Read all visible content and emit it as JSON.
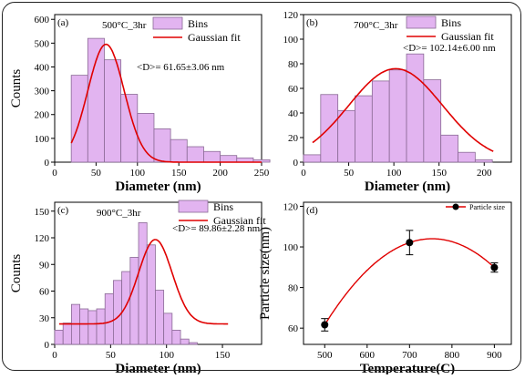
{
  "chart_data": [
    {
      "type": "bar",
      "panel_label": "(a)",
      "title": "500°C_3hr",
      "xlabel": "Diameter (nm)",
      "ylabel": "Counts",
      "xlim": [
        0,
        250
      ],
      "ylim": [
        0,
        620
      ],
      "xticks": [
        0,
        50,
        100,
        150,
        200,
        250
      ],
      "yticks": [
        0,
        100,
        200,
        300,
        400,
        500,
        600
      ],
      "bins": {
        "start": 20,
        "width": 20,
        "counts": [
          365,
          520,
          430,
          285,
          205,
          140,
          95,
          65,
          45,
          28,
          18,
          10
        ]
      },
      "fit": {
        "type": "gaussian",
        "mean": 62,
        "sigma": 22,
        "amplitude": 495,
        "x_range": [
          20,
          250
        ]
      },
      "legend": [
        "Bins",
        "Gaussian fit"
      ],
      "annotation": "<D>= 61.65±3.06 nm",
      "bar_color": "#e2b4f0",
      "fit_color": "#e00000"
    },
    {
      "type": "bar",
      "panel_label": "(b)",
      "title": "700°C_3hr",
      "xlabel": "Diameter (nm)",
      "ylabel": "",
      "xlim": [
        0,
        230
      ],
      "ylim": [
        0,
        120
      ],
      "xticks": [
        0,
        50,
        100,
        150,
        200
      ],
      "yticks": [
        0,
        20,
        40,
        60,
        80,
        100,
        120
      ],
      "bins": {
        "start": 0,
        "width": 19,
        "counts": [
          6,
          55,
          42,
          54,
          66,
          75,
          88,
          67,
          22,
          8,
          2
        ]
      },
      "fit": {
        "type": "gaussian",
        "mean": 102,
        "sigma": 52,
        "amplitude": 76,
        "x_range": [
          10,
          210
        ]
      },
      "legend": [
        "Bins",
        "Gaussian fit"
      ],
      "annotation": "<D>= 102.14±6.00 nm",
      "bar_color": "#e2b4f0",
      "fit_color": "#e00000"
    },
    {
      "type": "bar",
      "panel_label": "(c)",
      "title": "900°C_3hr",
      "xlabel": "Diameter (nm)",
      "ylabel": "Counts",
      "xlim": [
        0,
        185
      ],
      "ylim": [
        0,
        160
      ],
      "xticks": [
        0,
        50,
        100,
        150
      ],
      "yticks": [
        0,
        30,
        60,
        90,
        120,
        150
      ],
      "bins": {
        "start": 0,
        "width": 7.5,
        "counts": [
          16,
          24,
          45,
          40,
          38,
          40,
          57,
          72,
          82,
          98,
          137,
          112,
          61,
          35,
          16,
          6,
          2
        ]
      },
      "fit": {
        "type": "gaussian",
        "mean": 90,
        "sigma": 15,
        "amplitude": 95,
        "offset": 23,
        "x_range": [
          4,
          155
        ]
      },
      "legend": [
        "Bins",
        "Gaussian fit"
      ],
      "annotation": "<D>= 89.86±2.28 nm",
      "bar_color": "#e2b4f0",
      "fit_color": "#e00000"
    },
    {
      "type": "line",
      "panel_label": "(d)",
      "xlabel": "Temperature(C)",
      "ylabel": "Particle size(nm)",
      "xlim": [
        450,
        940
      ],
      "ylim": [
        52,
        122
      ],
      "xticks": [
        500,
        600,
        700,
        800,
        900
      ],
      "yticks": [
        60,
        80,
        100,
        120
      ],
      "series": [
        {
          "name": "Particle size",
          "x": [
            500,
            700,
            900
          ],
          "y": [
            61.65,
            102.14,
            89.86
          ],
          "err": [
            3.06,
            6.0,
            2.28
          ]
        }
      ],
      "legend": [
        "Particle size"
      ],
      "line_color": "#e00000",
      "marker_color": "#000000"
    }
  ]
}
